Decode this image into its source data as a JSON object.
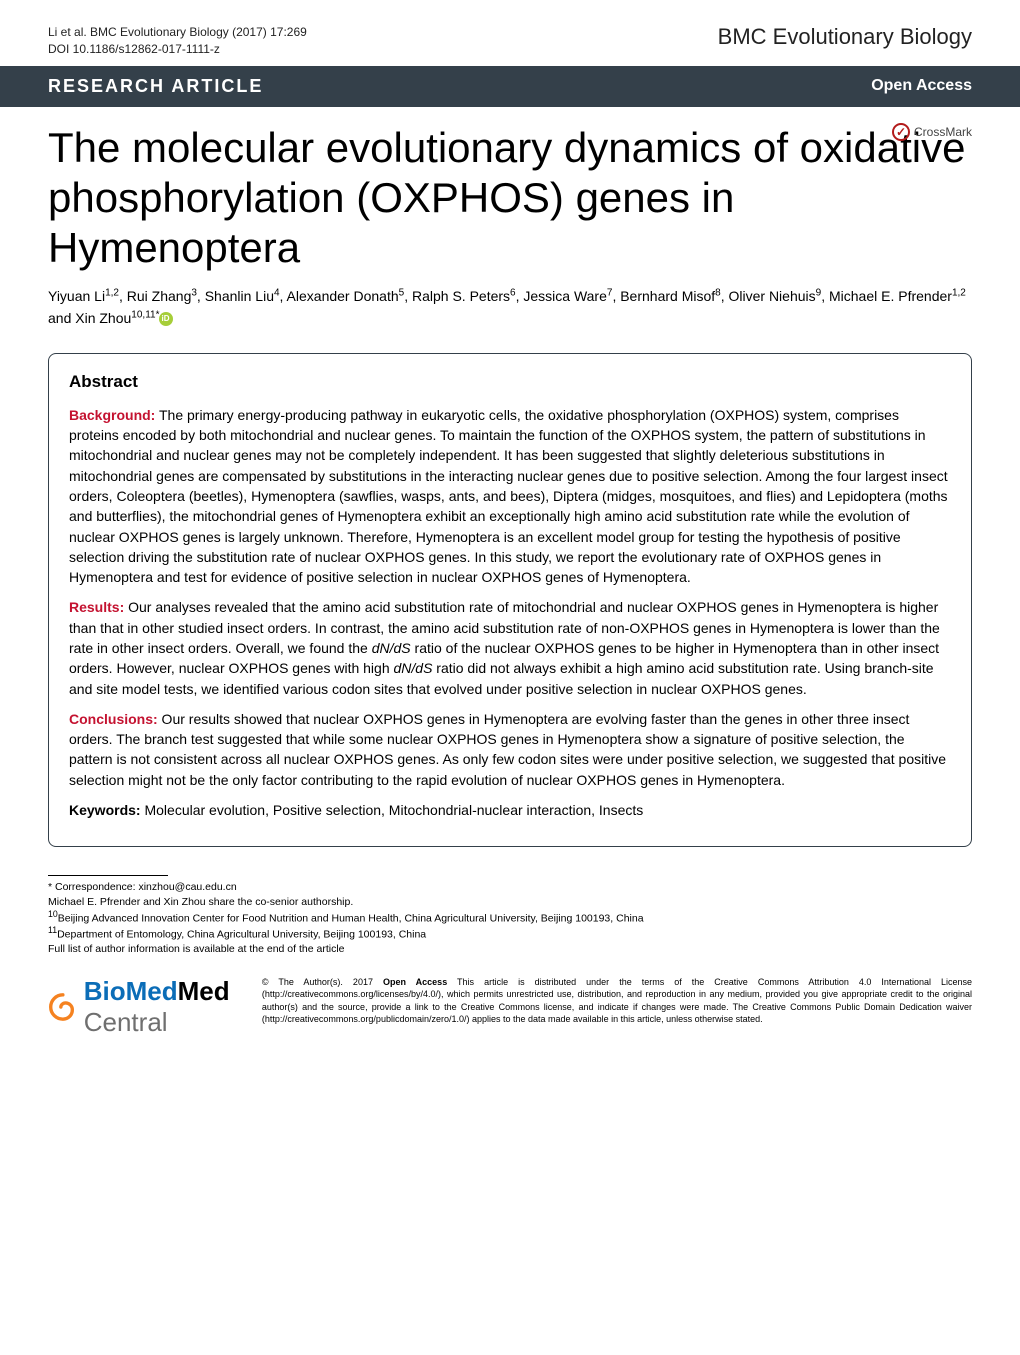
{
  "header": {
    "citation_line1": "Li et al. BMC Evolutionary Biology  (2017) 17:269",
    "citation_line2": "DOI 10.1186/s12862-017-1111-z",
    "journal": "BMC Evolutionary Biology"
  },
  "banner": {
    "article_type": "RESEARCH ARTICLE",
    "open_access": "Open Access"
  },
  "crossmark": {
    "label": "CrossMark"
  },
  "title": "The molecular evolutionary dynamics of oxidative phosphorylation (OXPHOS) genes in Hymenoptera",
  "authors_html": "Yiyuan Li<sup>1,2</sup>, Rui Zhang<sup>3</sup>, Shanlin Liu<sup>4</sup>, Alexander Donath<sup>5</sup>, Ralph S. Peters<sup>6</sup>, Jessica Ware<sup>7</sup>, Bernhard Misof<sup>8</sup>, Oliver Niehuis<sup>9</sup>, Michael E. Pfrender<sup>1,2</sup> and Xin Zhou<sup>10,11*</sup>",
  "abstract": {
    "heading": "Abstract",
    "background_label": "Background:",
    "background_text": " The primary energy-producing pathway in eukaryotic cells, the oxidative phosphorylation (OXPHOS) system, comprises proteins encoded by both mitochondrial and nuclear genes. To maintain the function of the OXPHOS system, the pattern of substitutions in mitochondrial and nuclear genes may not be completely independent. It has been suggested that slightly deleterious substitutions in mitochondrial genes are compensated by substitutions in the interacting nuclear genes due to positive selection. Among the four largest insect orders, Coleoptera (beetles), Hymenoptera (sawflies, wasps, ants, and bees), Diptera (midges, mosquitoes, and flies) and Lepidoptera (moths and butterflies), the mitochondrial genes of Hymenoptera exhibit an exceptionally high amino acid substitution rate while the evolution of nuclear OXPHOS genes is largely unknown. Therefore, Hymenoptera is an excellent model group for testing the hypothesis of positive selection driving the substitution rate of nuclear OXPHOS genes. In this study, we report the evolutionary rate of OXPHOS genes in Hymenoptera and test for evidence of positive selection in nuclear OXPHOS genes of Hymenoptera.",
    "results_label": "Results:",
    "results_text": " Our analyses revealed that the amino acid substitution rate of mitochondrial and nuclear OXPHOS genes in Hymenoptera is higher than that in other studied insect orders. In contrast, the amino acid substitution rate of non-OXPHOS genes in Hymenoptera is lower than the rate in other insect orders. Overall, we found the dN/dS ratio of the nuclear OXPHOS genes to be higher in Hymenoptera than in other insect orders. However, nuclear OXPHOS genes with high dN/dS ratio did not always exhibit a high amino acid substitution rate. Using branch-site and site model tests, we identified various codon sites that evolved under positive selection in nuclear OXPHOS genes.",
    "conclusions_label": "Conclusions:",
    "conclusions_text": " Our results showed that nuclear OXPHOS genes in Hymenoptera are evolving faster than the genes in other three insect orders. The branch test suggested that while some nuclear OXPHOS genes in Hymenoptera show a signature of positive selection, the pattern is not consistent across all nuclear OXPHOS genes. As only few codon sites were under positive selection, we suggested that positive selection might not be the only factor contributing to the rapid evolution of nuclear OXPHOS genes in Hymenoptera.",
    "keywords_label": "Keywords:",
    "keywords_text": " Molecular evolution, Positive selection, Mitochondrial-nuclear interaction, Insects"
  },
  "footer": {
    "corr": "* Correspondence: xinzhou@cau.edu.cn",
    "coauth": "Michael E. Pfrender and Xin Zhou share the co-senior authorship.",
    "aff10": "10Beijing Advanced Innovation Center for Food Nutrition and Human Health, China Agricultural University, Beijing 100193, China",
    "aff11": "11Department of Entomology, China Agricultural University, Beijing 100193, China",
    "full": "Full list of author information is available at the end of the article"
  },
  "bmc": {
    "bio": "BioMed",
    "central": " Central"
  },
  "license": {
    "copyright": "© The Author(s). 2017 ",
    "oa": "Open Access",
    "text": " This article is distributed under the terms of the Creative Commons Attribution 4.0 International License (http://creativecommons.org/licenses/by/4.0/), which permits unrestricted use, distribution, and reproduction in any medium, provided you give appropriate credit to the original author(s) and the source, provide a link to the Creative Commons license, and indicate if changes were made. The Creative Commons Public Domain Dedication waiver (http://creativecommons.org/publicdomain/zero/1.0/) applies to the data made available in this article, unless otherwise stated."
  },
  "colors": {
    "banner_bg": "#34404a",
    "accent_red": "#c41230",
    "bmc_blue": "#0b6db7",
    "bmc_orange": "#f58220"
  }
}
